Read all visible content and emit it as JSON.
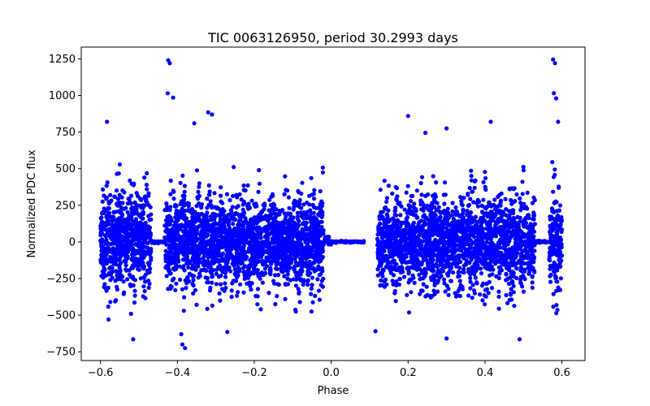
{
  "chart_data": {
    "type": "scatter",
    "title": "TIC 0063126950, period 30.2993 days",
    "xlabel": "Phase",
    "ylabel": "Normalized PDC flux",
    "xlim": [
      -0.65,
      0.66
    ],
    "ylim": [
      -810,
      1330
    ],
    "xticks": [
      -0.6,
      -0.4,
      -0.2,
      0.0,
      0.2,
      0.4,
      0.6
    ],
    "xtick_labels": [
      "−0.6",
      "−0.4",
      "−0.2",
      "0.0",
      "0.2",
      "0.4",
      "0.6"
    ],
    "yticks": [
      -750,
      -500,
      -250,
      0,
      250,
      500,
      750,
      1000,
      1250
    ],
    "ytick_labels": [
      "−750",
      "−500",
      "−250",
      "0",
      "250",
      "500",
      "750",
      "1000",
      "1250"
    ],
    "grid": false,
    "marker_color": "#0000ff",
    "series": [
      {
        "segments": [
          {
            "x_start": -0.6,
            "x_end": -0.468,
            "amplitude": 460
          },
          {
            "x_start": -0.468,
            "x_end": -0.433,
            "amplitude": 4
          },
          {
            "x_start": -0.433,
            "x_end": -0.02,
            "amplitude": 420
          },
          {
            "x_start": -0.02,
            "x_end": 0.0,
            "amplitude": 60
          },
          {
            "x_start": 0.0,
            "x_end": 0.085,
            "amplitude": 3
          },
          {
            "x_start": 0.12,
            "x_end": 0.53,
            "amplitude": 430
          },
          {
            "x_start": 0.53,
            "x_end": 0.567,
            "amplitude": 4
          },
          {
            "x_start": 0.567,
            "x_end": 0.6,
            "amplitude": 520
          }
        ],
        "outliers": [
          {
            "x": -0.583,
            "y": 820
          },
          {
            "x": -0.579,
            "y": -530
          },
          {
            "x": -0.515,
            "y": -665
          },
          {
            "x": -0.424,
            "y": 1240
          },
          {
            "x": -0.42,
            "y": 1220
          },
          {
            "x": -0.425,
            "y": 1015
          },
          {
            "x": -0.411,
            "y": 985
          },
          {
            "x": -0.387,
            "y": -700
          },
          {
            "x": -0.38,
            "y": -725
          },
          {
            "x": -0.39,
            "y": -630
          },
          {
            "x": -0.356,
            "y": 810
          },
          {
            "x": -0.32,
            "y": 885
          },
          {
            "x": -0.31,
            "y": 870
          },
          {
            "x": -0.27,
            "y": -615
          },
          {
            "x": -0.188,
            "y": 490
          },
          {
            "x": -0.183,
            "y": -460
          },
          {
            "x": 0.115,
            "y": -610
          },
          {
            "x": 0.2,
            "y": 860
          },
          {
            "x": 0.245,
            "y": 745
          },
          {
            "x": 0.3,
            "y": 775
          },
          {
            "x": 0.3,
            "y": -660
          },
          {
            "x": 0.415,
            "y": 820
          },
          {
            "x": 0.49,
            "y": -665
          },
          {
            "x": 0.577,
            "y": 1245
          },
          {
            "x": 0.582,
            "y": 1220
          },
          {
            "x": 0.579,
            "y": 1015
          },
          {
            "x": 0.585,
            "y": 980
          },
          {
            "x": 0.59,
            "y": 820
          }
        ]
      }
    ]
  }
}
